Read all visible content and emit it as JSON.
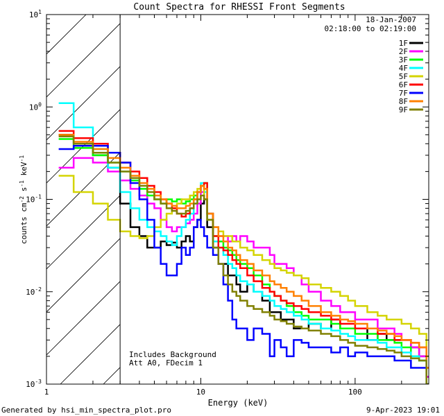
{
  "chart_data": {
    "type": "line",
    "title": "Count Spectra for RHESSI Front Segments",
    "xlabel": "Energy (keV)",
    "ylabel_base": "counts cm",
    "ylabel_exp1": "-2",
    "ylabel_mid": " s",
    "ylabel_exp2": "-1",
    "ylabel_end": " keV",
    "ylabel_exp3": "-1",
    "xscale": "log",
    "yscale": "log",
    "xlim": [
      1,
      300
    ],
    "ylim": [
      0.001,
      10
    ],
    "xticks": [
      {
        "value": 1,
        "label": "1"
      },
      {
        "value": 10,
        "label": "10"
      },
      {
        "value": 100,
        "label": "100"
      }
    ],
    "yticks": [
      {
        "value": 10,
        "base": "10",
        "exp": "1"
      },
      {
        "value": 1,
        "base": "10",
        "exp": "0"
      },
      {
        "value": 0.1,
        "base": "10",
        "exp": "-1"
      },
      {
        "value": 0.01,
        "base": "10",
        "exp": "-2"
      },
      {
        "value": 0.001,
        "base": "10",
        "exp": "-3"
      }
    ],
    "hatch_region": [
      1,
      3
    ],
    "date": "18-Jan-2007",
    "time_range": "02:18:00 to 02:19:00",
    "annotation_lines": [
      "Includes Background",
      "Att A0, FDecim 1"
    ],
    "footer_left": "Generated by hsi_min_spectra_plot.pro",
    "footer_right": "9-Apr-2023 19:01",
    "series": [
      {
        "name": "1F",
        "color": "#000000",
        "x": [
          1.2,
          1.5,
          2,
          2.5,
          3,
          3.5,
          4,
          4.5,
          5,
          5.5,
          6,
          6.5,
          7,
          7.5,
          8,
          8.5,
          9,
          9.5,
          10,
          10.5,
          11,
          12,
          13,
          14,
          15,
          16,
          17,
          18,
          20,
          22,
          25,
          28,
          30,
          33,
          36,
          40,
          45,
          50,
          60,
          70,
          80,
          90,
          100,
          120,
          140,
          160,
          180,
          200,
          230,
          260,
          290
        ],
        "y": [
          0.5,
          0.4,
          0.3,
          0.22,
          0.09,
          0.05,
          0.04,
          0.03,
          0.03,
          0.035,
          0.032,
          0.034,
          0.03,
          0.035,
          0.04,
          0.035,
          0.05,
          0.06,
          0.09,
          0.1,
          0.05,
          0.03,
          0.02,
          0.02,
          0.015,
          0.015,
          0.012,
          0.01,
          0.012,
          0.01,
          0.008,
          0.006,
          0.006,
          0.005,
          0.005,
          0.004,
          0.004,
          0.0045,
          0.004,
          0.005,
          0.004,
          0.004,
          0.004,
          0.003,
          0.0035,
          0.003,
          0.003,
          0.003,
          0.0025,
          0.002,
          0.0012
        ]
      },
      {
        "name": "2F",
        "color": "#ff00ff",
        "x": [
          1.2,
          1.5,
          2,
          2.5,
          3,
          3.5,
          4,
          4.5,
          5,
          5.5,
          6,
          6.5,
          7,
          7.5,
          8,
          8.5,
          9,
          9.5,
          10,
          10.5,
          11,
          12,
          13,
          14,
          15,
          16,
          17,
          18,
          20,
          22,
          25,
          28,
          30,
          33,
          36,
          40,
          45,
          50,
          60,
          70,
          80,
          90,
          100,
          120,
          140,
          160,
          180,
          200,
          230,
          260,
          290
        ],
        "y": [
          0.22,
          0.28,
          0.25,
          0.2,
          0.16,
          0.13,
          0.11,
          0.09,
          0.08,
          0.06,
          0.05,
          0.045,
          0.05,
          0.05,
          0.055,
          0.06,
          0.07,
          0.09,
          0.12,
          0.13,
          0.07,
          0.05,
          0.04,
          0.04,
          0.035,
          0.04,
          0.035,
          0.04,
          0.035,
          0.03,
          0.03,
          0.025,
          0.02,
          0.02,
          0.018,
          0.015,
          0.012,
          0.01,
          0.008,
          0.007,
          0.006,
          0.006,
          0.005,
          0.005,
          0.004,
          0.004,
          0.0035,
          0.003,
          0.0025,
          0.002,
          0.0012
        ]
      },
      {
        "name": "3F",
        "color": "#00ff00",
        "x": [
          1.2,
          1.5,
          2,
          2.5,
          3,
          3.5,
          4,
          4.5,
          5,
          5.5,
          6,
          6.5,
          7,
          7.5,
          8,
          8.5,
          9,
          9.5,
          10,
          10.5,
          11,
          12,
          13,
          14,
          15,
          16,
          17,
          18,
          20,
          22,
          25,
          28,
          30,
          33,
          36,
          40,
          45,
          50,
          60,
          70,
          80,
          90,
          100,
          120,
          140,
          160,
          180,
          200,
          230,
          260,
          290
        ],
        "y": [
          0.45,
          0.36,
          0.3,
          0.25,
          0.2,
          0.16,
          0.13,
          0.11,
          0.1,
          0.09,
          0.1,
          0.095,
          0.1,
          0.09,
          0.095,
          0.1,
          0.11,
          0.12,
          0.14,
          0.15,
          0.07,
          0.04,
          0.035,
          0.03,
          0.028,
          0.025,
          0.022,
          0.02,
          0.018,
          0.015,
          0.012,
          0.01,
          0.009,
          0.008,
          0.007,
          0.006,
          0.0055,
          0.005,
          0.005,
          0.0045,
          0.004,
          0.004,
          0.0035,
          0.0035,
          0.003,
          0.003,
          0.0028,
          0.0025,
          0.002,
          0.0018,
          0.001
        ]
      },
      {
        "name": "4F",
        "color": "#00ffff",
        "x": [
          1.2,
          1.5,
          2,
          2.5,
          3,
          3.5,
          4,
          4.5,
          5,
          5.5,
          6,
          6.5,
          7,
          7.5,
          8,
          8.5,
          9,
          9.5,
          10,
          10.5,
          11,
          12,
          13,
          14,
          15,
          16,
          17,
          18,
          20,
          22,
          25,
          28,
          30,
          33,
          36,
          40,
          45,
          50,
          60,
          70,
          80,
          90,
          100,
          120,
          140,
          160,
          180,
          200,
          230,
          260,
          290
        ],
        "y": [
          1.1,
          0.6,
          0.35,
          0.22,
          0.12,
          0.08,
          0.06,
          0.05,
          0.045,
          0.04,
          0.035,
          0.032,
          0.04,
          0.05,
          0.06,
          0.07,
          0.09,
          0.12,
          0.15,
          0.12,
          0.06,
          0.035,
          0.03,
          0.025,
          0.02,
          0.018,
          0.015,
          0.013,
          0.012,
          0.01,
          0.009,
          0.008,
          0.007,
          0.0065,
          0.006,
          0.0055,
          0.005,
          0.0045,
          0.004,
          0.0038,
          0.0035,
          0.0033,
          0.003,
          0.003,
          0.0028,
          0.0025,
          0.0025,
          0.0022,
          0.002,
          0.0018,
          0.001
        ]
      },
      {
        "name": "5F",
        "color": "#d4d400",
        "x": [
          1.2,
          1.5,
          2,
          2.5,
          3,
          3.5,
          4,
          4.5,
          5,
          5.5,
          6,
          6.5,
          7,
          7.5,
          8,
          8.5,
          9,
          9.5,
          10,
          10.5,
          11,
          12,
          13,
          14,
          15,
          16,
          17,
          18,
          20,
          22,
          25,
          28,
          30,
          33,
          36,
          40,
          45,
          50,
          60,
          70,
          80,
          90,
          100,
          120,
          140,
          160,
          180,
          200,
          230,
          260,
          290
        ],
        "y": [
          0.18,
          0.12,
          0.09,
          0.06,
          0.045,
          0.04,
          0.038,
          0.04,
          0.05,
          0.06,
          0.07,
          0.08,
          0.09,
          0.1,
          0.1,
          0.11,
          0.12,
          0.13,
          0.14,
          0.1,
          0.06,
          0.05,
          0.045,
          0.04,
          0.04,
          0.035,
          0.035,
          0.03,
          0.028,
          0.025,
          0.022,
          0.02,
          0.018,
          0.017,
          0.016,
          0.015,
          0.014,
          0.012,
          0.011,
          0.01,
          0.009,
          0.008,
          0.007,
          0.006,
          0.0055,
          0.005,
          0.005,
          0.0045,
          0.004,
          0.0035,
          0.002
        ]
      },
      {
        "name": "6F",
        "color": "#ff0000",
        "x": [
          1.2,
          1.5,
          2,
          2.5,
          3,
          3.5,
          4,
          4.5,
          5,
          5.5,
          6,
          6.5,
          7,
          7.5,
          8,
          8.5,
          9,
          9.5,
          10,
          10.5,
          11,
          12,
          13,
          14,
          15,
          16,
          17,
          18,
          20,
          22,
          25,
          28,
          30,
          33,
          36,
          40,
          45,
          50,
          60,
          70,
          80,
          90,
          100,
          120,
          140,
          160,
          180,
          200,
          230,
          260,
          290
        ],
        "y": [
          0.55,
          0.46,
          0.4,
          0.32,
          0.25,
          0.2,
          0.17,
          0.14,
          0.12,
          0.1,
          0.09,
          0.08,
          0.07,
          0.065,
          0.07,
          0.08,
          0.1,
          0.12,
          0.14,
          0.15,
          0.07,
          0.04,
          0.03,
          0.028,
          0.025,
          0.022,
          0.02,
          0.018,
          0.015,
          0.013,
          0.011,
          0.01,
          0.009,
          0.008,
          0.0075,
          0.007,
          0.0065,
          0.006,
          0.0055,
          0.005,
          0.0045,
          0.0045,
          0.004,
          0.004,
          0.0035,
          0.0035,
          0.003,
          0.003,
          0.0028,
          0.0025,
          0.0015
        ]
      },
      {
        "name": "7F",
        "color": "#0000ff",
        "x": [
          1.2,
          1.5,
          2,
          2.5,
          3,
          3.5,
          4,
          4.5,
          5,
          5.5,
          6,
          6.5,
          7,
          7.5,
          8,
          8.5,
          9,
          9.5,
          10,
          10.5,
          11,
          12,
          13,
          14,
          15,
          16,
          17,
          18,
          20,
          22,
          25,
          28,
          30,
          33,
          36,
          40,
          45,
          50,
          60,
          70,
          80,
          90,
          100,
          120,
          140,
          160,
          180,
          200,
          230,
          260,
          290
        ],
        "y": [
          0.35,
          0.38,
          0.38,
          0.32,
          0.25,
          0.15,
          0.1,
          0.06,
          0.03,
          0.02,
          0.015,
          0.015,
          0.02,
          0.03,
          0.025,
          0.03,
          0.05,
          0.06,
          0.05,
          0.04,
          0.03,
          0.025,
          0.02,
          0.012,
          0.008,
          0.005,
          0.004,
          0.004,
          0.003,
          0.004,
          0.0035,
          0.002,
          0.003,
          0.0025,
          0.002,
          0.003,
          0.0028,
          0.0025,
          0.0025,
          0.0022,
          0.0025,
          0.002,
          0.0022,
          0.002,
          0.002,
          0.002,
          0.0018,
          0.0018,
          0.0015,
          0.0015,
          0.001
        ]
      },
      {
        "name": "8F",
        "color": "#ff8000",
        "x": [
          1.2,
          1.5,
          2,
          2.5,
          3,
          3.5,
          4,
          4.5,
          5,
          5.5,
          6,
          6.5,
          7,
          7.5,
          8,
          8.5,
          9,
          9.5,
          10,
          10.5,
          11,
          12,
          13,
          14,
          15,
          16,
          17,
          18,
          20,
          22,
          25,
          28,
          30,
          33,
          36,
          40,
          45,
          50,
          60,
          70,
          80,
          90,
          100,
          120,
          140,
          160,
          180,
          200,
          230,
          260,
          290
        ],
        "y": [
          0.5,
          0.42,
          0.35,
          0.28,
          0.22,
          0.18,
          0.15,
          0.13,
          0.11,
          0.1,
          0.09,
          0.085,
          0.08,
          0.08,
          0.085,
          0.09,
          0.1,
          0.12,
          0.14,
          0.13,
          0.07,
          0.05,
          0.04,
          0.035,
          0.03,
          0.028,
          0.025,
          0.022,
          0.02,
          0.017,
          0.015,
          0.013,
          0.012,
          0.011,
          0.01,
          0.009,
          0.008,
          0.007,
          0.006,
          0.0055,
          0.005,
          0.0048,
          0.0045,
          0.004,
          0.0038,
          0.0035,
          0.0033,
          0.003,
          0.0028,
          0.0025,
          0.0015
        ]
      },
      {
        "name": "9F",
        "color": "#808000",
        "x": [
          1.2,
          1.5,
          2,
          2.5,
          3,
          3.5,
          4,
          4.5,
          5,
          5.5,
          6,
          6.5,
          7,
          7.5,
          8,
          8.5,
          9,
          9.5,
          10,
          10.5,
          11,
          12,
          13,
          14,
          15,
          16,
          17,
          18,
          20,
          22,
          25,
          28,
          30,
          33,
          36,
          40,
          45,
          50,
          60,
          70,
          80,
          90,
          100,
          120,
          140,
          160,
          180,
          200,
          230,
          260,
          290
        ],
        "y": [
          0.48,
          0.4,
          0.32,
          0.25,
          0.2,
          0.17,
          0.14,
          0.12,
          0.1,
          0.09,
          0.08,
          0.075,
          0.07,
          0.07,
          0.075,
          0.08,
          0.09,
          0.1,
          0.11,
          0.1,
          0.06,
          0.03,
          0.02,
          0.015,
          0.012,
          0.01,
          0.009,
          0.008,
          0.007,
          0.0065,
          0.006,
          0.0055,
          0.005,
          0.0048,
          0.0045,
          0.0042,
          0.004,
          0.0038,
          0.0035,
          0.0033,
          0.003,
          0.0028,
          0.0026,
          0.0025,
          0.0024,
          0.0023,
          0.0022,
          0.002,
          0.0019,
          0.0018,
          0.001
        ]
      }
    ]
  }
}
